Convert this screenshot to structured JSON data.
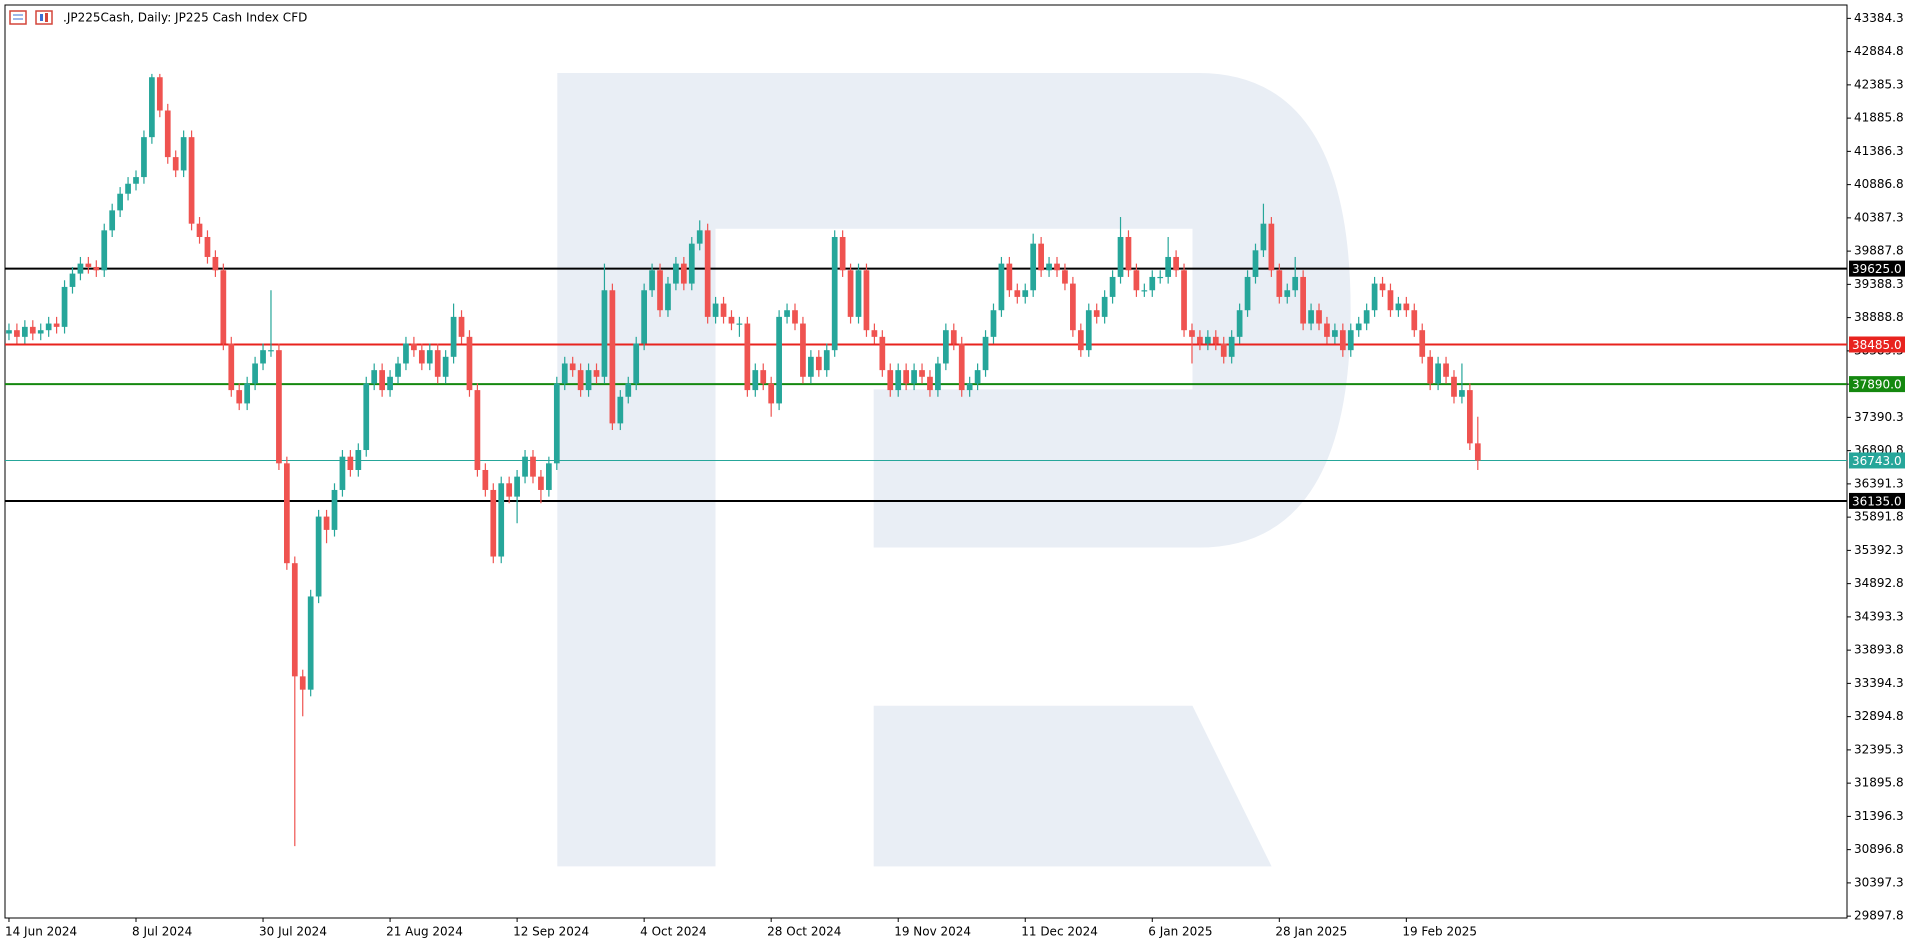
{
  "chart_data": {
    "type": "candlestick",
    "title": ".JP225Cash, Daily:  JP225 Cash Index CFD",
    "categories": [
      "14 Jun 2024",
      null,
      null,
      null,
      null,
      null,
      null,
      null,
      null,
      null,
      null,
      null,
      null,
      null,
      null,
      null,
      "8 Jul 2024",
      null,
      null,
      null,
      null,
      null,
      null,
      null,
      null,
      null,
      null,
      null,
      null,
      null,
      null,
      null,
      "30 Jul 2024",
      null,
      null,
      null,
      null,
      null,
      null,
      null,
      null,
      null,
      null,
      null,
      null,
      null,
      null,
      null,
      "21 Aug 2024",
      null,
      null,
      null,
      null,
      null,
      null,
      null,
      null,
      null,
      null,
      null,
      null,
      null,
      null,
      null,
      "12 Sep 2024",
      null,
      null,
      null,
      null,
      null,
      null,
      null,
      null,
      null,
      null,
      null,
      null,
      null,
      null,
      null,
      "4 Oct 2024",
      null,
      null,
      null,
      null,
      null,
      null,
      null,
      null,
      null,
      null,
      null,
      null,
      null,
      null,
      null,
      "28 Oct 2024",
      null,
      null,
      null,
      null,
      null,
      null,
      null,
      null,
      null,
      null,
      null,
      null,
      null,
      null,
      null,
      "19 Nov 2024",
      null,
      null,
      null,
      null,
      null,
      null,
      null,
      null,
      null,
      null,
      null,
      null,
      null,
      null,
      null,
      "11 Dec 2024",
      null,
      null,
      null,
      null,
      null,
      null,
      null,
      null,
      null,
      null,
      null,
      null,
      null,
      null,
      null,
      "6 Jan 2025",
      null,
      null,
      null,
      null,
      null,
      null,
      null,
      null,
      null,
      null,
      null,
      null,
      null,
      null,
      null,
      "28 Jan 2025",
      null,
      null,
      null,
      null,
      null,
      null,
      null,
      null,
      null,
      null,
      null,
      null,
      null,
      null,
      null,
      "19 Feb 2025",
      null,
      null,
      null,
      null,
      null,
      null,
      null,
      null,
      null
    ],
    "ohlc": [
      [
        38650,
        38800,
        38550,
        38700
      ],
      [
        38700,
        38800,
        38500,
        38600
      ],
      [
        38600,
        38850,
        38500,
        38750
      ],
      [
        38750,
        38850,
        38550,
        38650
      ],
      [
        38650,
        38800,
        38550,
        38700
      ],
      [
        38700,
        38900,
        38600,
        38800
      ],
      [
        38800,
        38900,
        38650,
        38750
      ],
      [
        38750,
        39450,
        38650,
        39350
      ],
      [
        39350,
        39650,
        39250,
        39550
      ],
      [
        39550,
        39800,
        39450,
        39700
      ],
      [
        39700,
        39800,
        39550,
        39650
      ],
      [
        39650,
        39750,
        39500,
        39600
      ],
      [
        39600,
        40300,
        39500,
        40200
      ],
      [
        40200,
        40600,
        40100,
        40500
      ],
      [
        40500,
        40850,
        40400,
        40750
      ],
      [
        40750,
        41000,
        40650,
        40900
      ],
      [
        40900,
        41100,
        40800,
        41000
      ],
      [
        41000,
        41700,
        40900,
        41600
      ],
      [
        41600,
        42550,
        41500,
        42500
      ],
      [
        42500,
        42550,
        41900,
        42000
      ],
      [
        42000,
        42100,
        41200,
        41300
      ],
      [
        41300,
        41400,
        41000,
        41100
      ],
      [
        41100,
        41700,
        41000,
        41600
      ],
      [
        41600,
        41700,
        40200,
        40300
      ],
      [
        40300,
        40400,
        40000,
        40100
      ],
      [
        40100,
        40200,
        39700,
        39800
      ],
      [
        39800,
        39900,
        39500,
        39600
      ],
      [
        39600,
        39700,
        38400,
        38500
      ],
      [
        38500,
        38600,
        37700,
        37800
      ],
      [
        37800,
        37900,
        37500,
        37600
      ],
      [
        37600,
        38000,
        37500,
        37900
      ],
      [
        37900,
        38300,
        37800,
        38200
      ],
      [
        38200,
        38500,
        38100,
        38400
      ],
      [
        38400,
        39300,
        38300,
        38400
      ],
      [
        38400,
        38500,
        36600,
        36700
      ],
      [
        36700,
        36800,
        35100,
        35200
      ],
      [
        35200,
        35300,
        30950,
        33500
      ],
      [
        33500,
        33600,
        32900,
        33300
      ],
      [
        33300,
        34800,
        33200,
        34700
      ],
      [
        34700,
        36000,
        34600,
        35900
      ],
      [
        35900,
        36000,
        35500,
        35700
      ],
      [
        35700,
        36400,
        35600,
        36300
      ],
      [
        36300,
        36900,
        36200,
        36800
      ],
      [
        36800,
        36900,
        36500,
        36600
      ],
      [
        36600,
        37000,
        36500,
        36900
      ],
      [
        36900,
        38000,
        36800,
        37900
      ],
      [
        37900,
        38200,
        37800,
        38100
      ],
      [
        38100,
        38200,
        37700,
        37800
      ],
      [
        37800,
        38100,
        37700,
        38000
      ],
      [
        38000,
        38300,
        37900,
        38200
      ],
      [
        38200,
        38600,
        38100,
        38500
      ],
      [
        38500,
        38600,
        38300,
        38400
      ],
      [
        38400,
        38500,
        38100,
        38200
      ],
      [
        38200,
        38500,
        38100,
        38400
      ],
      [
        38400,
        38500,
        37900,
        38000
      ],
      [
        38000,
        38400,
        37900,
        38300
      ],
      [
        38300,
        39100,
        38200,
        38900
      ],
      [
        38900,
        39000,
        38500,
        38600
      ],
      [
        38600,
        38700,
        37700,
        37800
      ],
      [
        37800,
        37900,
        36500,
        36600
      ],
      [
        36600,
        36700,
        36200,
        36300
      ],
      [
        36300,
        36400,
        35200,
        35300
      ],
      [
        35300,
        36500,
        35200,
        36400
      ],
      [
        36400,
        36500,
        36100,
        36200
      ],
      [
        36200,
        36600,
        35800,
        36500
      ],
      [
        36500,
        36900,
        36400,
        36800
      ],
      [
        36800,
        36900,
        36400,
        36500
      ],
      [
        36500,
        36600,
        36100,
        36300
      ],
      [
        36300,
        36800,
        36200,
        36700
      ],
      [
        36700,
        38000,
        36600,
        37900
      ],
      [
        37900,
        38300,
        37800,
        38200
      ],
      [
        38200,
        38300,
        38000,
        38100
      ],
      [
        38100,
        38200,
        37700,
        37800
      ],
      [
        37800,
        38200,
        37700,
        38100
      ],
      [
        38100,
        38200,
        37900,
        38000
      ],
      [
        38000,
        39700,
        37900,
        39300
      ],
      [
        39300,
        39400,
        37200,
        37300
      ],
      [
        37300,
        37800,
        37200,
        37700
      ],
      [
        37700,
        38000,
        37600,
        37900
      ],
      [
        37900,
        38600,
        37800,
        38500
      ],
      [
        38500,
        39400,
        38400,
        39300
      ],
      [
        39300,
        39700,
        39200,
        39600
      ],
      [
        39600,
        39700,
        38900,
        39000
      ],
      [
        39000,
        39500,
        38900,
        39400
      ],
      [
        39400,
        39800,
        39300,
        39700
      ],
      [
        39700,
        39800,
        39300,
        39400
      ],
      [
        39400,
        40100,
        39300,
        40000
      ],
      [
        40000,
        40350,
        39900,
        40200
      ],
      [
        40200,
        40300,
        38800,
        38900
      ],
      [
        38900,
        39200,
        38800,
        39100
      ],
      [
        39100,
        39200,
        38800,
        38900
      ],
      [
        38900,
        39000,
        38700,
        38800
      ],
      [
        38800,
        38900,
        38600,
        38800
      ],
      [
        38800,
        38900,
        37700,
        37800
      ],
      [
        37800,
        38200,
        37700,
        38100
      ],
      [
        38100,
        38200,
        37800,
        37900
      ],
      [
        37900,
        38000,
        37400,
        37600
      ],
      [
        37600,
        39000,
        37500,
        38900
      ],
      [
        38900,
        39100,
        38800,
        39000
      ],
      [
        39000,
        39100,
        38700,
        38800
      ],
      [
        38800,
        38900,
        37900,
        38000
      ],
      [
        38000,
        38400,
        37900,
        38300
      ],
      [
        38300,
        38400,
        38000,
        38100
      ],
      [
        38100,
        38500,
        38000,
        38400
      ],
      [
        38400,
        40200,
        38300,
        40100
      ],
      [
        40100,
        40200,
        39500,
        39600
      ],
      [
        39600,
        39700,
        38800,
        38900
      ],
      [
        38900,
        39700,
        38800,
        39600
      ],
      [
        39600,
        39700,
        38600,
        38700
      ],
      [
        38700,
        38800,
        38500,
        38600
      ],
      [
        38600,
        38700,
        38000,
        38100
      ],
      [
        38100,
        38200,
        37700,
        37800
      ],
      [
        37800,
        38200,
        37700,
        38100
      ],
      [
        38100,
        38200,
        37800,
        37900
      ],
      [
        37900,
        38200,
        37800,
        38100
      ],
      [
        38100,
        38200,
        37900,
        38000
      ],
      [
        38000,
        38100,
        37700,
        37800
      ],
      [
        37800,
        38300,
        37700,
        38200
      ],
      [
        38200,
        38800,
        38100,
        38700
      ],
      [
        38700,
        38800,
        38400,
        38500
      ],
      [
        38500,
        38600,
        37700,
        37800
      ],
      [
        37800,
        38000,
        37700,
        37900
      ],
      [
        37900,
        38200,
        37800,
        38100
      ],
      [
        38100,
        38700,
        38000,
        38600
      ],
      [
        38600,
        39100,
        38500,
        39000
      ],
      [
        39000,
        39800,
        38900,
        39700
      ],
      [
        39700,
        39800,
        39200,
        39300
      ],
      [
        39300,
        39400,
        39100,
        39200
      ],
      [
        39200,
        39400,
        39100,
        39300
      ],
      [
        39300,
        40150,
        39200,
        40000
      ],
      [
        40000,
        40100,
        39500,
        39600
      ],
      [
        39600,
        39800,
        39500,
        39700
      ],
      [
        39700,
        39800,
        39500,
        39600
      ],
      [
        39600,
        39700,
        39300,
        39400
      ],
      [
        39400,
        39500,
        38600,
        38700
      ],
      [
        38700,
        38800,
        38300,
        38400
      ],
      [
        38400,
        39100,
        38300,
        39000
      ],
      [
        39000,
        39100,
        38800,
        38900
      ],
      [
        38900,
        39300,
        38800,
        39200
      ],
      [
        39200,
        39600,
        39100,
        39500
      ],
      [
        39500,
        40400,
        39400,
        40100
      ],
      [
        40100,
        40200,
        39500,
        39600
      ],
      [
        39600,
        39700,
        39200,
        39300
      ],
      [
        39300,
        39400,
        39200,
        39300
      ],
      [
        39300,
        39600,
        39200,
        39500
      ],
      [
        39500,
        39600,
        39400,
        39500
      ],
      [
        39500,
        40100,
        39400,
        39800
      ],
      [
        39800,
        39900,
        39500,
        39600
      ],
      [
        39600,
        39700,
        38600,
        38700
      ],
      [
        38700,
        38800,
        38200,
        38600
      ],
      [
        38600,
        38700,
        38400,
        38500
      ],
      [
        38500,
        38700,
        38400,
        38600
      ],
      [
        38600,
        38700,
        38400,
        38500
      ],
      [
        38500,
        38600,
        38200,
        38300
      ],
      [
        38300,
        38700,
        38200,
        38600
      ],
      [
        38600,
        39100,
        38500,
        39000
      ],
      [
        39000,
        39600,
        38900,
        39500
      ],
      [
        39500,
        40000,
        39400,
        39900
      ],
      [
        39900,
        40600,
        39800,
        40300
      ],
      [
        40300,
        40400,
        39500,
        39600
      ],
      [
        39600,
        39700,
        39100,
        39200
      ],
      [
        39200,
        39400,
        39100,
        39300
      ],
      [
        39300,
        39800,
        39200,
        39500
      ],
      [
        39500,
        39600,
        38700,
        38800
      ],
      [
        38800,
        39100,
        38700,
        39000
      ],
      [
        39000,
        39100,
        38700,
        38800
      ],
      [
        38800,
        38900,
        38500,
        38600
      ],
      [
        38600,
        38800,
        38500,
        38700
      ],
      [
        38700,
        38800,
        38300,
        38400
      ],
      [
        38400,
        38800,
        38300,
        38700
      ],
      [
        38700,
        38900,
        38600,
        38800
      ],
      [
        38800,
        39100,
        38700,
        39000
      ],
      [
        39000,
        39500,
        38900,
        39400
      ],
      [
        39400,
        39500,
        39200,
        39300
      ],
      [
        39300,
        39400,
        38900,
        39000
      ],
      [
        39000,
        39200,
        38900,
        39100
      ],
      [
        39100,
        39200,
        38900,
        39000
      ],
      [
        39000,
        39100,
        38600,
        38700
      ],
      [
        38700,
        38800,
        38200,
        38300
      ],
      [
        38300,
        38400,
        37800,
        37900
      ],
      [
        37900,
        38300,
        37800,
        38200
      ],
      [
        38200,
        38300,
        37900,
        38000
      ],
      [
        38000,
        38100,
        37600,
        37700
      ],
      [
        37700,
        38200,
        37600,
        37800
      ],
      [
        37800,
        37900,
        36900,
        37000
      ],
      [
        37000,
        37400,
        36600,
        36743
      ]
    ],
    "up_color": "#26a69a",
    "down_color": "#ef5350",
    "ylim": [
      29870,
      43585
    ],
    "yticks": [
      43384.3,
      42884.8,
      42385.3,
      41885.8,
      41386.3,
      40886.8,
      40387.3,
      39887.8,
      39388.3,
      38888.8,
      38389.3,
      37889.8,
      37390.3,
      36890.8,
      36391.3,
      35891.8,
      35392.3,
      34892.8,
      34393.3,
      33893.8,
      33394.3,
      32894.8,
      32395.3,
      31895.8,
      31396.3,
      30896.8,
      30397.3,
      29897.8
    ],
    "levels": [
      {
        "value": 39625,
        "label": "39625.0",
        "color": "#000000"
      },
      {
        "value": 38485,
        "label": "38485.0",
        "color": "#e8231e"
      },
      {
        "value": 37890,
        "label": "37890.0",
        "color": "#14880f"
      },
      {
        "value": 36135,
        "label": "36135.0",
        "color": "#000000"
      }
    ],
    "last_price": {
      "value": 36743,
      "label": "36743.0",
      "color": "#26a69a"
    }
  }
}
